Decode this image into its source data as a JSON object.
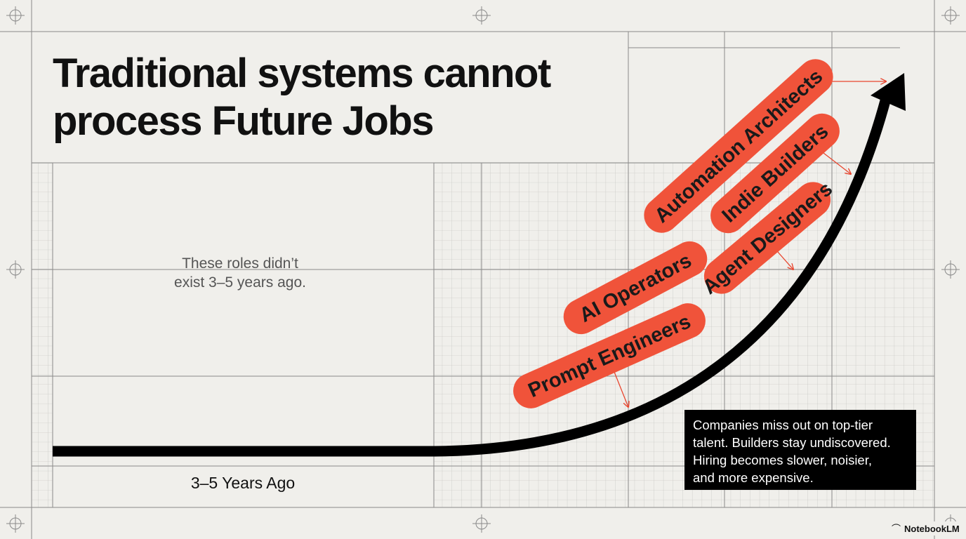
{
  "title": {
    "lines": [
      "Traditional systems cannot",
      "process Future Jobs"
    ]
  },
  "note": {
    "lines": [
      "These roles didn’t",
      "exist 3–5 years ago."
    ]
  },
  "axis_label": "3–5 Years Ago",
  "roles": [
    "Automation Architects",
    "Indie Builders",
    "Agent Designers",
    "AI Operators",
    "Prompt Engineers"
  ],
  "callout": {
    "lines": [
      "Companies miss out on top-tier",
      "talent. Builders stay undiscovered.",
      "Hiring becomes slower, noisier,",
      "and more expensive."
    ]
  },
  "brand": "NotebookLM"
}
